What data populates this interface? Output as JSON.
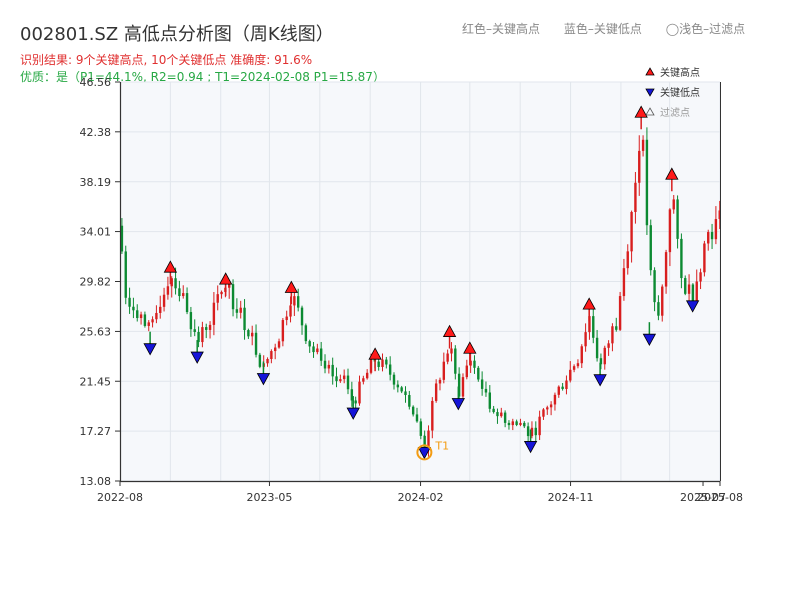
{
  "header": {
    "title": "002801.SZ 高低点分析图（周K线图）",
    "stats": "识别结果: 9个关键高点, 10个关键低点  准确度: 91.6%",
    "quality": "优质：是（P1=44.1%, R2=0.94 ; T1=2024-02-08 P1=15.87）"
  },
  "top_legend": {
    "red": "红色–关键高点",
    "blue": "蓝色–关键低点",
    "gray": "◯浅色–过滤点"
  },
  "colors": {
    "up": "#d81e1e",
    "down": "#0c8a32",
    "high_marker": "#ff1a1a",
    "low_marker": "#1515d8",
    "filtered": "#bbbbbb",
    "t1": "#f39c12",
    "plot_bg": "#f6f8fb",
    "grid": "#e1e6ec"
  },
  "chart_data": {
    "type": "candlestick",
    "title": "002801.SZ 高低点分析图（周K线图）",
    "xlabel": "",
    "ylabel": "",
    "ylim": [
      13.08,
      46.56
    ],
    "xlim": [
      "2022-08-01",
      "2025-08-01"
    ],
    "yticks": [
      "13.08",
      "17.27",
      "21.45",
      "25.63",
      "29.82",
      "34.01",
      "38.19",
      "42.38",
      "46.56"
    ],
    "xticks": [
      {
        "date": "2022-08-01",
        "label": "2022-08"
      },
      {
        "date": "2023-05-01",
        "label": "2023-05"
      },
      {
        "date": "2024-02-01",
        "label": "2024-02"
      },
      {
        "date": "2024-11-01",
        "label": "2024-11"
      },
      {
        "date": "2025-07-01",
        "label": "2025-07"
      },
      {
        "date": "2025-08-01",
        "label": "2025-08"
      }
    ],
    "legend": {
      "position": "top-right",
      "items": [
        {
          "name": "关键高点",
          "marker": "triangle-up"
        },
        {
          "name": "关键低点",
          "marker": "triangle-down"
        },
        {
          "name": "过滤点",
          "marker": "triangle-outline"
        }
      ]
    },
    "anchors": [
      [
        "2022-08-01",
        34.5
      ],
      [
        "2022-08-10",
        29.0
      ],
      [
        "2022-09-01",
        27.5
      ],
      [
        "2022-09-25",
        25.2
      ],
      [
        "2022-10-15",
        28.5
      ],
      [
        "2022-11-01",
        30.6
      ],
      [
        "2022-12-01",
        27.8
      ],
      [
        "2022-12-20",
        24.6
      ],
      [
        "2023-01-15",
        27.0
      ],
      [
        "2023-02-10",
        29.6
      ],
      [
        "2023-03-15",
        26.5
      ],
      [
        "2023-04-20",
        22.6
      ],
      [
        "2023-05-20",
        25.5
      ],
      [
        "2023-06-10",
        28.9
      ],
      [
        "2023-07-10",
        25.0
      ],
      [
        "2023-08-10",
        22.0
      ],
      [
        "2023-09-15",
        21.0
      ],
      [
        "2023-10-01",
        19.7
      ],
      [
        "2023-10-25",
        22.0
      ],
      [
        "2023-11-10",
        23.3
      ],
      [
        "2023-12-10",
        22.0
      ],
      [
        "2024-01-10",
        20.0
      ],
      [
        "2024-02-08",
        15.9
      ],
      [
        "2024-03-01",
        21.0
      ],
      [
        "2024-03-25",
        24.5
      ],
      [
        "2024-04-10",
        20.4
      ],
      [
        "2024-05-01",
        23.5
      ],
      [
        "2024-06-01",
        20.0
      ],
      [
        "2024-07-01",
        18.0
      ],
      [
        "2024-08-01",
        18.0
      ],
      [
        "2024-08-20",
        16.8
      ],
      [
        "2024-10-01",
        20.0
      ],
      [
        "2024-11-15",
        23.5
      ],
      [
        "2024-12-05",
        27.0
      ],
      [
        "2024-12-25",
        22.5
      ],
      [
        "2025-01-25",
        27.0
      ],
      [
        "2025-02-25",
        37.0
      ],
      [
        "2025-03-10",
        43.6
      ],
      [
        "2025-03-25",
        31.0
      ],
      [
        "2025-04-08",
        26.0
      ],
      [
        "2025-04-20",
        30.0
      ],
      [
        "2025-05-05",
        38.4
      ],
      [
        "2025-05-20",
        30.0
      ],
      [
        "2025-06-12",
        28.8
      ],
      [
        "2025-07-10",
        34.0
      ],
      [
        "2025-08-01",
        35.0
      ]
    ],
    "key_highs": [
      {
        "date": "2022-11-01",
        "value": 30.6
      },
      {
        "date": "2023-02-10",
        "value": 29.6
      },
      {
        "date": "2023-06-10",
        "value": 28.9
      },
      {
        "date": "2023-11-10",
        "value": 23.3
      },
      {
        "date": "2024-03-25",
        "value": 25.2
      },
      {
        "date": "2024-05-01",
        "value": 23.8
      },
      {
        "date": "2024-12-05",
        "value": 27.5
      },
      {
        "date": "2025-03-10",
        "value": 43.6
      },
      {
        "date": "2025-05-05",
        "value": 38.4
      }
    ],
    "key_lows": [
      {
        "date": "2022-09-25",
        "value": 24.6
      },
      {
        "date": "2022-12-20",
        "value": 23.9
      },
      {
        "date": "2023-04-20",
        "value": 22.1
      },
      {
        "date": "2023-10-01",
        "value": 19.2
      },
      {
        "date": "2024-02-08",
        "value": 15.9
      },
      {
        "date": "2024-04-10",
        "value": 20.0
      },
      {
        "date": "2024-08-20",
        "value": 16.4
      },
      {
        "date": "2024-12-25",
        "value": 22.0
      },
      {
        "date": "2025-03-25",
        "value": 25.4
      },
      {
        "date": "2025-06-12",
        "value": 28.2
      }
    ],
    "annotation": {
      "label": "T1",
      "date": "2024-02-08",
      "value": 15.9
    }
  }
}
